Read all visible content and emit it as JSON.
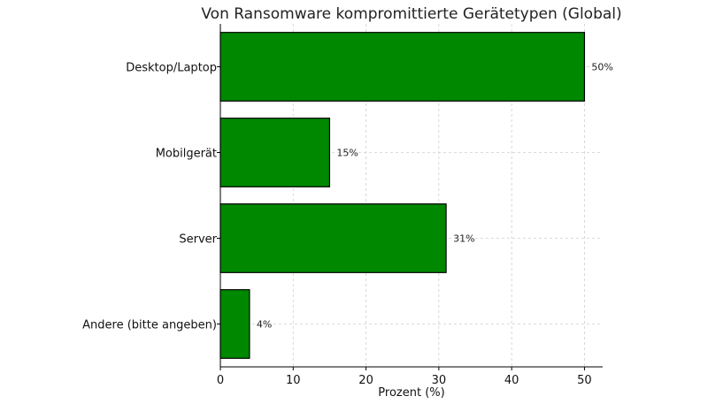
{
  "chart_data": {
    "type": "bar",
    "orientation": "horizontal",
    "title": "Von Ransomware kompromittierte Gerätetypen (Global)",
    "xlabel": "Prozent (%)",
    "ylabel": "",
    "categories": [
      "Desktop/Laptop",
      "Mobilgerät",
      "Server",
      "Andere (bitte angeben)"
    ],
    "values": [
      50,
      15,
      31,
      4
    ],
    "data_labels": [
      "50%",
      "15%",
      "31%",
      "4%"
    ],
    "xlim": [
      0,
      52.5
    ],
    "xticks": [
      0,
      10,
      20,
      30,
      40,
      50
    ],
    "grid": true,
    "bar_color": "#008800",
    "edge_color": "#000000"
  }
}
